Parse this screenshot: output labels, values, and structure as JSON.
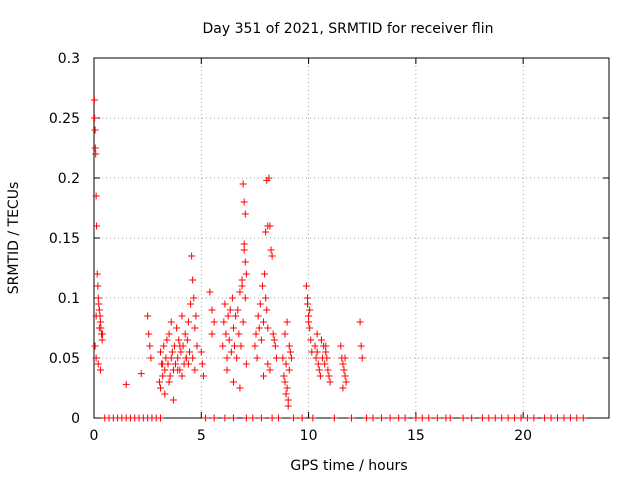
{
  "chart_data": {
    "type": "scatter",
    "title": "Day 351 of 2021, SRMTID for receiver flin",
    "xlabel": "GPS time / hours",
    "ylabel": "SRMTID / TECUs",
    "xlim": [
      0,
      24
    ],
    "ylim": [
      0,
      0.3
    ],
    "xticks": [
      {
        "value": 0,
        "label": "0"
      },
      {
        "value": 5,
        "label": "5"
      },
      {
        "value": 10,
        "label": "10"
      },
      {
        "value": 15,
        "label": "15"
      },
      {
        "value": 20,
        "label": "20"
      }
    ],
    "yticks": [
      {
        "value": 0,
        "label": "0"
      },
      {
        "value": 0.05,
        "label": "0.05"
      },
      {
        "value": 0.1,
        "label": "0.1"
      },
      {
        "value": 0.15,
        "label": "0.15"
      },
      {
        "value": 0.2,
        "label": "0.2"
      },
      {
        "value": 0.25,
        "label": "0.25"
      },
      {
        "value": 0.3,
        "label": "0.3"
      }
    ],
    "grid": true,
    "marker": "plus",
    "color": "#ff0000",
    "series": [
      {
        "name": "SRMTID",
        "x": [
          0.02,
          0.03,
          0.05,
          0.06,
          0.08,
          0.1,
          0.12,
          0.15,
          0.18,
          0.2,
          0.22,
          0.25,
          0.28,
          0.3,
          0.32,
          0.35,
          0.38,
          0.05,
          0.1,
          0.2,
          0.3,
          0.1,
          0.25,
          0.4,
          1.5,
          2.2,
          2.5,
          2.55,
          2.6,
          2.65,
          3.05,
          3.1,
          3.15,
          3.2,
          3.25,
          3.3,
          3.35,
          3.4,
          3.45,
          3.5,
          3.55,
          3.6,
          3.65,
          3.7,
          3.75,
          3.8,
          3.85,
          3.9,
          3.95,
          4.0,
          4.05,
          4.1,
          4.15,
          4.2,
          4.25,
          4.3,
          4.35,
          4.4,
          4.45,
          3.1,
          3.3,
          3.5,
          3.7,
          3.9,
          4.1,
          4.3,
          3.2,
          3.6,
          4.0,
          4.4,
          4.55,
          4.6,
          4.65,
          4.7,
          4.75,
          4.8,
          4.5,
          4.6,
          4.7,
          5.0,
          5.05,
          5.1,
          5.4,
          5.5,
          5.6,
          5.5,
          6.0,
          6.05,
          6.1,
          6.15,
          6.2,
          6.25,
          6.3,
          6.35,
          6.4,
          6.45,
          6.5,
          6.55,
          6.6,
          6.65,
          6.7,
          6.75,
          6.8,
          6.85,
          6.9,
          6.95,
          7.0,
          7.05,
          7.1,
          7.0,
          7.05,
          6.95,
          7.0,
          6.9,
          7.05,
          6.2,
          6.5,
          6.8,
          7.1,
          7.5,
          7.55,
          7.6,
          7.65,
          7.7,
          7.75,
          7.8,
          7.85,
          7.9,
          7.95,
          8.0,
          8.05,
          8.1,
          8.15,
          8.2,
          8.25,
          8.3,
          8.35,
          8.4,
          8.45,
          8.5,
          8.05,
          8.1,
          8.0,
          8.1,
          7.9,
          8.2,
          8.8,
          8.85,
          8.9,
          8.95,
          9.0,
          9.05,
          9.1,
          9.15,
          9.2,
          8.9,
          9.0,
          9.1,
          8.95,
          9.05,
          9.9,
          9.95,
          10.0,
          10.05,
          10.1,
          10.15,
          9.95,
          10.05,
          10.0,
          10.3,
          10.35,
          10.4,
          10.45,
          10.5,
          10.55,
          10.6,
          10.65,
          10.7,
          10.75,
          10.8,
          10.85,
          10.9,
          10.95,
          11.0,
          10.4,
          10.6,
          10.8,
          11.5,
          11.55,
          11.6,
          11.65,
          11.7,
          11.75,
          11.6,
          11.7,
          12.4,
          12.45,
          12.5,
          0.5,
          0.7,
          0.9,
          1.1,
          1.3,
          1.5,
          1.7,
          1.9,
          2.1,
          2.3,
          2.5,
          2.7,
          2.9,
          3.1,
          5.2,
          5.6,
          6.1,
          6.5,
          7.1,
          7.4,
          7.8,
          8.3,
          8.6,
          9.3,
          9.7,
          10.2,
          11.2,
          12.0,
          12.7,
          13.0,
          13.4,
          13.8,
          14.2,
          14.5,
          15.0,
          15.3,
          15.6,
          16.0,
          16.4,
          16.6,
          17.2,
          17.6,
          18.1,
          18.4,
          18.7,
          19.0,
          19.3,
          19.6,
          19.9,
          20.2,
          20.5,
          21.0,
          21.3,
          21.6,
          21.9,
          22.2,
          22.5,
          22.8
        ],
        "y": [
          0.265,
          0.25,
          0.24,
          0.225,
          0.22,
          0.185,
          0.16,
          0.12,
          0.11,
          0.1,
          0.095,
          0.09,
          0.085,
          0.08,
          0.075,
          0.07,
          0.065,
          0.06,
          0.05,
          0.045,
          0.04,
          0.085,
          0.075,
          0.07,
          0.028,
          0.037,
          0.085,
          0.07,
          0.06,
          0.05,
          0.03,
          0.055,
          0.045,
          0.035,
          0.06,
          0.04,
          0.05,
          0.065,
          0.045,
          0.07,
          0.035,
          0.08,
          0.055,
          0.04,
          0.06,
          0.045,
          0.075,
          0.05,
          0.065,
          0.04,
          0.055,
          0.085,
          0.06,
          0.045,
          0.07,
          0.05,
          0.065,
          0.08,
          0.055,
          0.025,
          0.02,
          0.03,
          0.015,
          0.04,
          0.035,
          0.05,
          0.045,
          0.05,
          0.06,
          0.045,
          0.135,
          0.115,
          0.1,
          0.075,
          0.085,
          0.06,
          0.095,
          0.05,
          0.04,
          0.055,
          0.045,
          0.035,
          0.105,
          0.09,
          0.08,
          0.07,
          0.06,
          0.08,
          0.095,
          0.07,
          0.05,
          0.085,
          0.065,
          0.09,
          0.055,
          0.1,
          0.075,
          0.06,
          0.085,
          0.05,
          0.09,
          0.07,
          0.105,
          0.06,
          0.115,
          0.08,
          0.145,
          0.13,
          0.12,
          0.18,
          0.17,
          0.195,
          0.14,
          0.11,
          0.1,
          0.04,
          0.03,
          0.025,
          0.045,
          0.06,
          0.07,
          0.05,
          0.085,
          0.075,
          0.095,
          0.065,
          0.11,
          0.08,
          0.12,
          0.1,
          0.09,
          0.075,
          0.2,
          0.16,
          0.14,
          0.135,
          0.07,
          0.065,
          0.06,
          0.05,
          0.198,
          0.16,
          0.155,
          0.045,
          0.035,
          0.04,
          0.05,
          0.035,
          0.03,
          0.045,
          0.025,
          0.015,
          0.04,
          0.055,
          0.05,
          0.07,
          0.08,
          0.06,
          0.02,
          0.01,
          0.11,
          0.095,
          0.085,
          0.075,
          0.065,
          0.055,
          0.1,
          0.09,
          0.08,
          0.06,
          0.05,
          0.055,
          0.045,
          0.04,
          0.035,
          0.065,
          0.05,
          0.06,
          0.045,
          0.055,
          0.05,
          0.04,
          0.035,
          0.03,
          0.07,
          0.065,
          0.06,
          0.06,
          0.05,
          0.045,
          0.04,
          0.035,
          0.03,
          0.025,
          0.05,
          0.08,
          0.06,
          0.05,
          0,
          0,
          0,
          0,
          0,
          0,
          0,
          0,
          0,
          0,
          0,
          0,
          0,
          0,
          0,
          0,
          0,
          0,
          0,
          0,
          0,
          0,
          0,
          0,
          0,
          0,
          0,
          0,
          0,
          0,
          0,
          0,
          0,
          0,
          0,
          0,
          0,
          0,
          0,
          0,
          0,
          0,
          0,
          0,
          0,
          0,
          0,
          0,
          0,
          0,
          0,
          0,
          0,
          0,
          0,
          0,
          0,
          0
        ]
      }
    ]
  }
}
